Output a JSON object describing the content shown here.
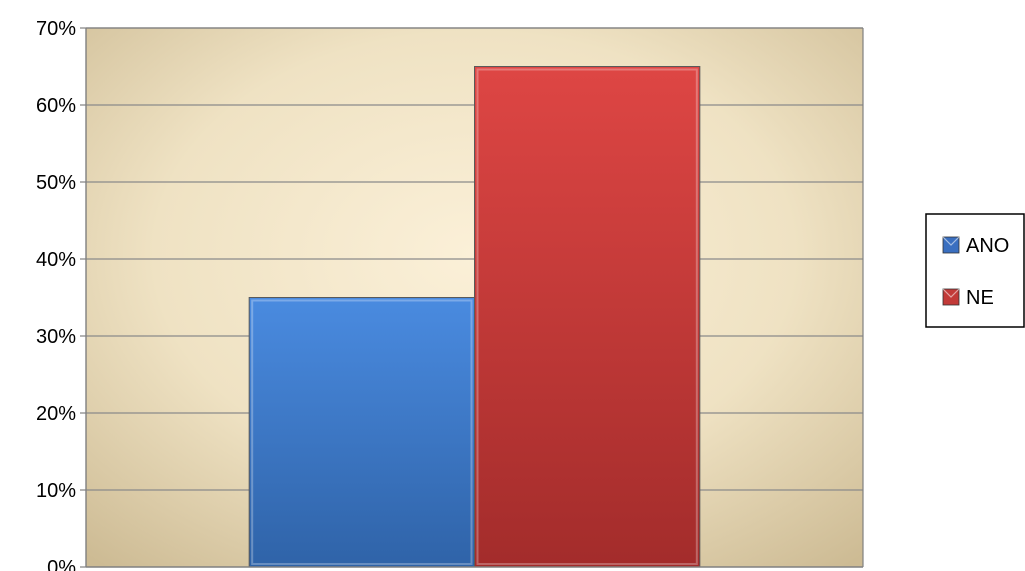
{
  "chart_data": {
    "type": "bar",
    "title": "",
    "xlabel": "",
    "ylabel": "",
    "ylim": [
      0,
      70
    ],
    "y_ticks": [
      0,
      10,
      20,
      30,
      40,
      50,
      60,
      70
    ],
    "y_tick_labels": [
      "0%",
      "10%",
      "20%",
      "30%",
      "40%",
      "50%",
      "60%",
      "70%"
    ],
    "grid": true,
    "legend_position": "right",
    "series": [
      {
        "name": "ANO",
        "values": [
          35
        ],
        "color": "#3a6fc0"
      },
      {
        "name": "NE",
        "values": [
          65
        ],
        "color": "#c23a38"
      }
    ]
  }
}
